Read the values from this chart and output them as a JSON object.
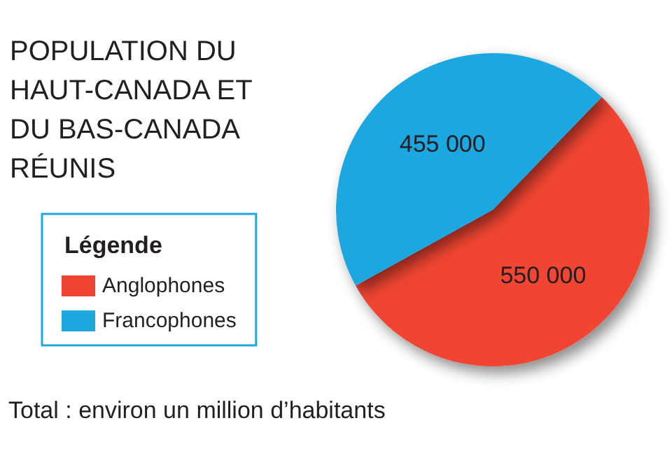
{
  "chart_data": {
    "type": "pie",
    "title": "POPULATION DU HAUT-CANADA ET DU BAS-CANADA RÉUNIS",
    "legend_title": "Légende",
    "categories": [
      "Anglophones",
      "Francophones"
    ],
    "values": [
      550000,
      455000
    ],
    "colors": [
      "#f04433",
      "#1fa7e0"
    ],
    "value_labels": [
      "550 000",
      "455 000"
    ],
    "legend": "left",
    "annotations": [
      "Total : environ un million d’habitants"
    ]
  }
}
